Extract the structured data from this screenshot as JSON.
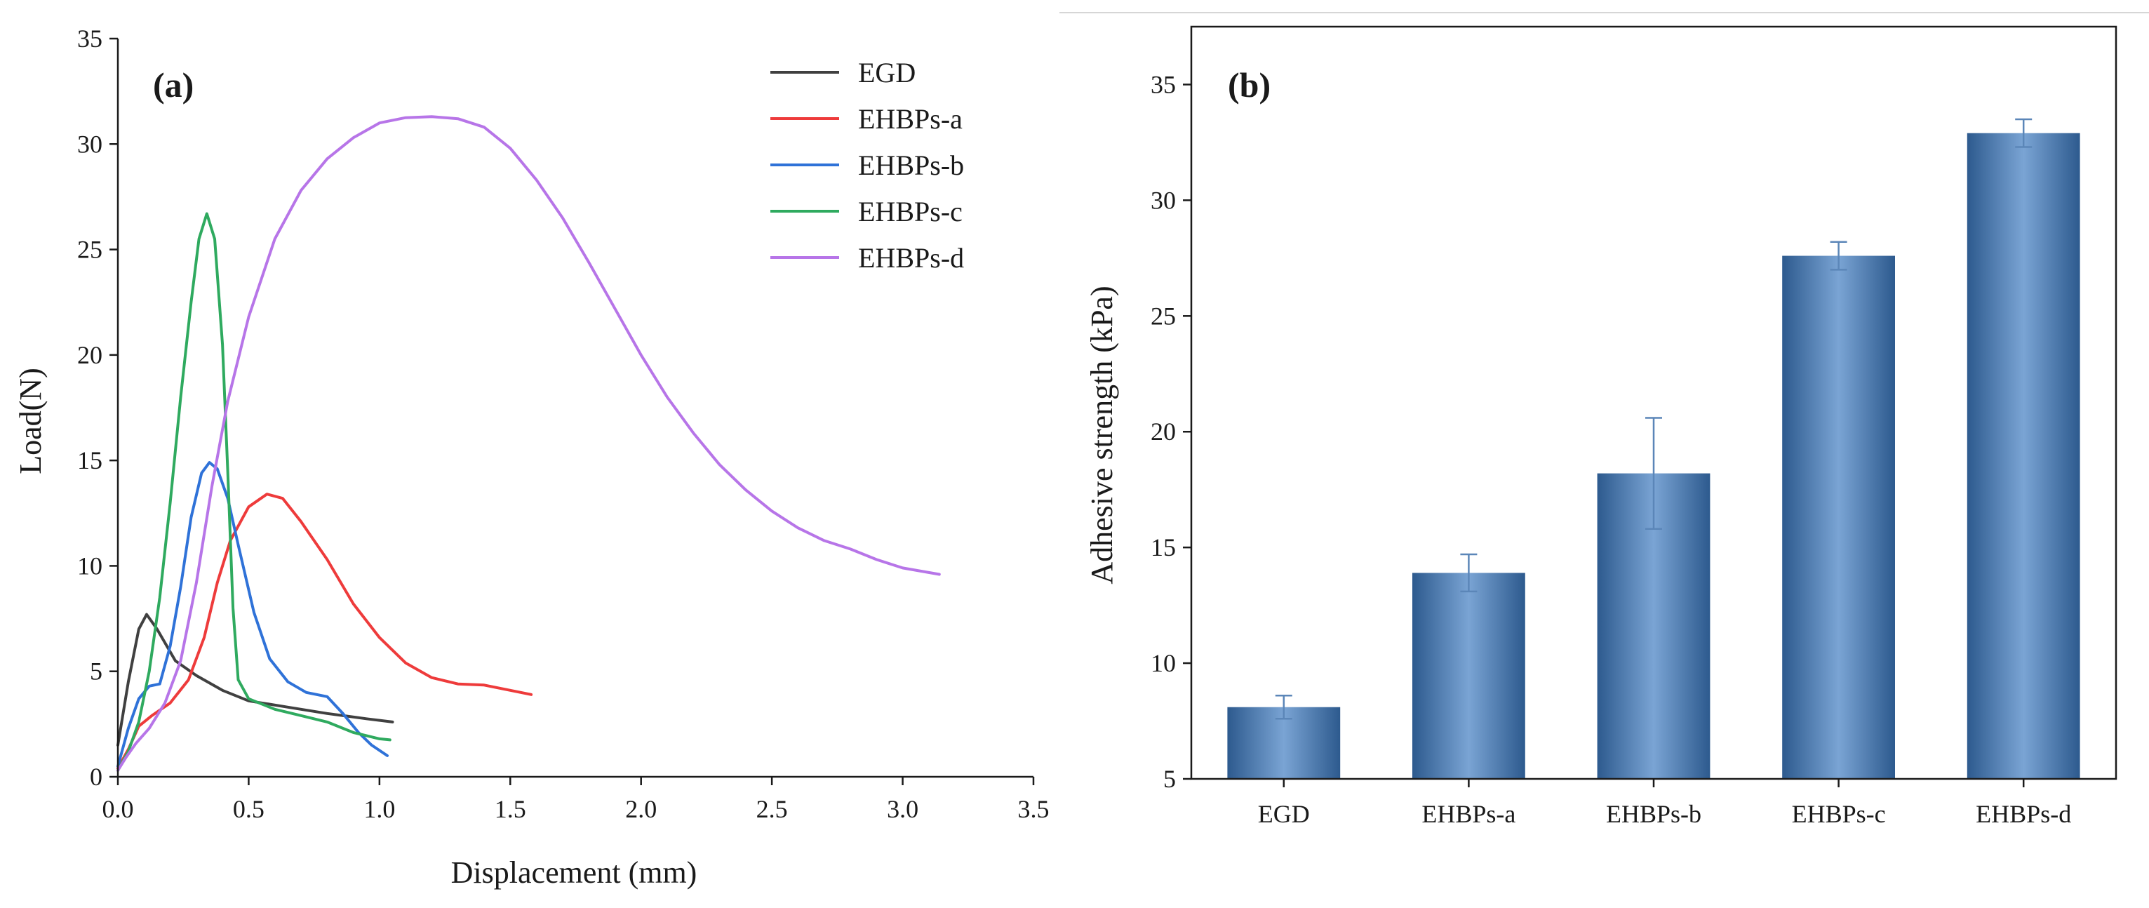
{
  "colors": {
    "EGD": "#404040",
    "EHBPs-a": "#ee3b3b",
    "EHBPs-b": "#2f72d8",
    "EHBPs-c": "#2faa5f",
    "EHBPs-d": "#b775e8",
    "bar_dark": "#2d5a8e",
    "bar_light": "#7aa4d4",
    "error_bar": "#5b86b8"
  },
  "chart_data": [
    {
      "id": "a",
      "panel_label": "(a)",
      "type": "line",
      "title": "",
      "xlabel": "Displacement (mm)",
      "ylabel": "Load(N)",
      "xlim": [
        0.0,
        3.5
      ],
      "ylim": [
        0,
        35
      ],
      "xticks": [
        0.0,
        0.5,
        1.0,
        1.5,
        2.0,
        2.5,
        3.0,
        3.5
      ],
      "xtick_labels": [
        "0.0",
        "0.5",
        "1.0",
        "1.5",
        "2.0",
        "2.5",
        "3.0",
        "3.5"
      ],
      "yticks": [
        0,
        5,
        10,
        15,
        20,
        25,
        30,
        35
      ],
      "ytick_labels": [
        "0",
        "5",
        "10",
        "15",
        "20",
        "25",
        "30",
        "35"
      ],
      "grid": false,
      "legend_position": "top-right",
      "series": [
        {
          "name": "EGD",
          "points": [
            [
              0,
              1.5
            ],
            [
              0.04,
              4.5
            ],
            [
              0.08,
              7
            ],
            [
              0.11,
              7.7
            ],
            [
              0.15,
              7
            ],
            [
              0.22,
              5.5
            ],
            [
              0.3,
              4.8
            ],
            [
              0.4,
              4.1
            ],
            [
              0.5,
              3.6
            ],
            [
              0.65,
              3.3
            ],
            [
              0.8,
              3.0
            ],
            [
              0.95,
              2.75
            ],
            [
              1.05,
              2.6
            ]
          ]
        },
        {
          "name": "EHBPs-a",
          "points": [
            [
              0,
              0.4
            ],
            [
              0.04,
              1.3
            ],
            [
              0.08,
              2.4
            ],
            [
              0.13,
              2.9
            ],
            [
              0.2,
              3.5
            ],
            [
              0.27,
              4.6
            ],
            [
              0.33,
              6.6
            ],
            [
              0.38,
              9.2
            ],
            [
              0.43,
              11.2
            ],
            [
              0.5,
              12.8
            ],
            [
              0.57,
              13.4
            ],
            [
              0.63,
              13.2
            ],
            [
              0.7,
              12.1
            ],
            [
              0.8,
              10.3
            ],
            [
              0.9,
              8.2
            ],
            [
              1.0,
              6.6
            ],
            [
              1.1,
              5.4
            ],
            [
              1.2,
              4.7
            ],
            [
              1.3,
              4.4
            ],
            [
              1.4,
              4.35
            ],
            [
              1.5,
              4.1
            ],
            [
              1.58,
              3.9
            ]
          ]
        },
        {
          "name": "EHBPs-b",
          "points": [
            [
              0,
              0.5
            ],
            [
              0.04,
              2.3
            ],
            [
              0.08,
              3.7
            ],
            [
              0.12,
              4.3
            ],
            [
              0.16,
              4.4
            ],
            [
              0.2,
              6.2
            ],
            [
              0.24,
              9.0
            ],
            [
              0.28,
              12.3
            ],
            [
              0.32,
              14.4
            ],
            [
              0.35,
              14.9
            ],
            [
              0.38,
              14.6
            ],
            [
              0.42,
              13.2
            ],
            [
              0.46,
              11.0
            ],
            [
              0.52,
              7.8
            ],
            [
              0.58,
              5.6
            ],
            [
              0.65,
              4.5
            ],
            [
              0.72,
              4.0
            ],
            [
              0.8,
              3.8
            ],
            [
              0.86,
              3.0
            ],
            [
              0.92,
              2.1
            ],
            [
              0.97,
              1.5
            ],
            [
              1.03,
              1.0
            ]
          ]
        },
        {
          "name": "EHBPs-c",
          "points": [
            [
              0,
              0.3
            ],
            [
              0.04,
              1.2
            ],
            [
              0.08,
              2.6
            ],
            [
              0.12,
              5.0
            ],
            [
              0.16,
              8.5
            ],
            [
              0.2,
              13.0
            ],
            [
              0.24,
              18.0
            ],
            [
              0.28,
              22.5
            ],
            [
              0.31,
              25.5
            ],
            [
              0.34,
              26.7
            ],
            [
              0.37,
              25.5
            ],
            [
              0.4,
              20.5
            ],
            [
              0.42,
              14.5
            ],
            [
              0.44,
              8.0
            ],
            [
              0.46,
              4.6
            ],
            [
              0.5,
              3.7
            ],
            [
              0.6,
              3.2
            ],
            [
              0.7,
              2.9
            ],
            [
              0.8,
              2.6
            ],
            [
              0.9,
              2.1
            ],
            [
              1.0,
              1.8
            ],
            [
              1.04,
              1.75
            ]
          ]
        },
        {
          "name": "EHBPs-d",
          "points": [
            [
              0,
              0.3
            ],
            [
              0.03,
              0.9
            ],
            [
              0.07,
              1.6
            ],
            [
              0.12,
              2.3
            ],
            [
              0.18,
              3.5
            ],
            [
              0.24,
              5.5
            ],
            [
              0.3,
              9.2
            ],
            [
              0.36,
              13.8
            ],
            [
              0.42,
              17.8
            ],
            [
              0.5,
              21.8
            ],
            [
              0.6,
              25.5
            ],
            [
              0.7,
              27.8
            ],
            [
              0.8,
              29.3
            ],
            [
              0.9,
              30.3
            ],
            [
              1.0,
              31.0
            ],
            [
              1.1,
              31.25
            ],
            [
              1.2,
              31.3
            ],
            [
              1.3,
              31.2
            ],
            [
              1.4,
              30.8
            ],
            [
              1.5,
              29.8
            ],
            [
              1.6,
              28.3
            ],
            [
              1.7,
              26.5
            ],
            [
              1.8,
              24.4
            ],
            [
              1.9,
              22.2
            ],
            [
              2.0,
              20.0
            ],
            [
              2.1,
              18.0
            ],
            [
              2.2,
              16.3
            ],
            [
              2.3,
              14.8
            ],
            [
              2.4,
              13.6
            ],
            [
              2.5,
              12.6
            ],
            [
              2.6,
              11.8
            ],
            [
              2.7,
              11.2
            ],
            [
              2.8,
              10.8
            ],
            [
              2.9,
              10.3
            ],
            [
              3.0,
              9.9
            ],
            [
              3.14,
              9.6
            ]
          ]
        }
      ]
    },
    {
      "id": "b",
      "panel_label": "(b)",
      "type": "bar",
      "title": "",
      "xlabel": "",
      "ylabel": "Adhesive strength (kPa)",
      "ylim": [
        5,
        37.5
      ],
      "yticks": [
        5,
        10,
        15,
        20,
        25,
        30,
        35
      ],
      "ytick_labels": [
        "5",
        "10",
        "15",
        "20",
        "25",
        "30",
        "35"
      ],
      "grid": false,
      "categories": [
        "EGD",
        "EHBPs-a",
        "EHBPs-b",
        "EHBPs-c",
        "EHBPs-d"
      ],
      "values": [
        8.1,
        13.9,
        18.2,
        27.6,
        32.9
      ],
      "errors": [
        0.5,
        0.8,
        2.4,
        0.6,
        0.6
      ]
    }
  ]
}
